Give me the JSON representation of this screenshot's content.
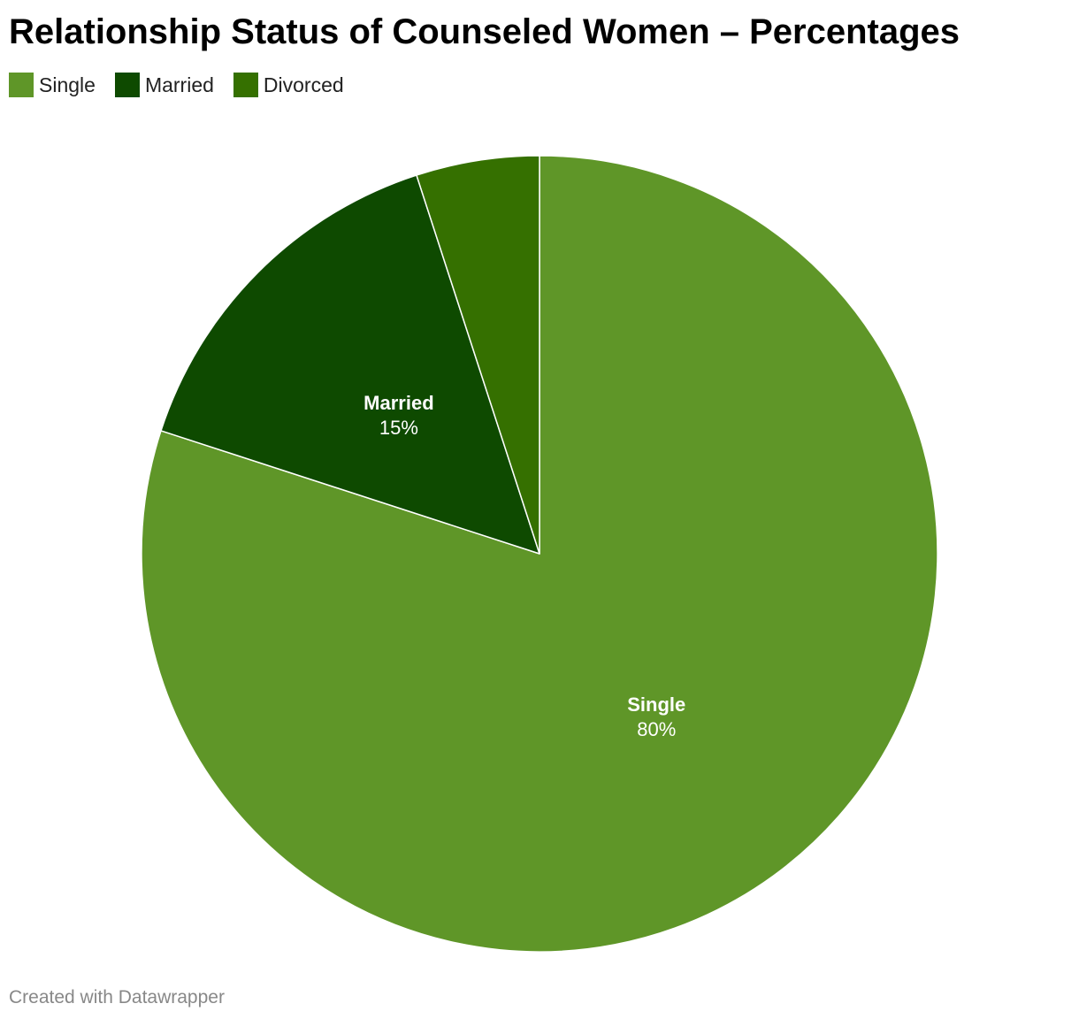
{
  "title": "Relationship Status of Counseled Women – Percentages",
  "footer": "Created with Datawrapper",
  "chart_data": {
    "type": "pie",
    "title": "Relationship Status of Counseled Women – Percentages",
    "legend_placement": "top-left",
    "value_suffix": "%",
    "slices": [
      {
        "label": "Single",
        "value": 80,
        "color": "#5f9628",
        "show_label": true
      },
      {
        "label": "Married",
        "value": 15,
        "color": "#0e4a00",
        "show_label": true
      },
      {
        "label": "Divorced",
        "value": 5,
        "color": "#357000",
        "show_label": false
      }
    ]
  }
}
